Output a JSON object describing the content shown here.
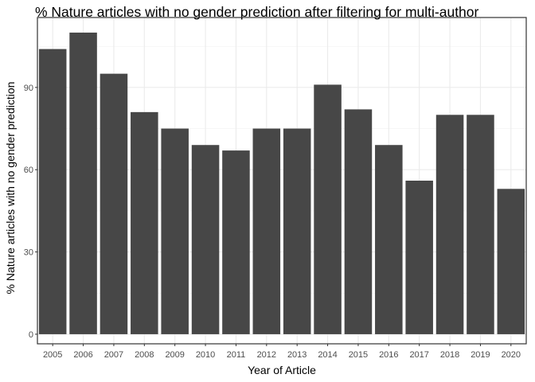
{
  "chart_data": {
    "type": "bar",
    "title": "% Nature articles with no gender prediction after filtering for multi-author",
    "xlabel": "Year of Article",
    "ylabel": "% Nature articles with no gender prediction",
    "categories": [
      "2005",
      "2006",
      "2007",
      "2008",
      "2009",
      "2010",
      "2011",
      "2012",
      "2013",
      "2014",
      "2015",
      "2016",
      "2017",
      "2018",
      "2019",
      "2020"
    ],
    "values": [
      104,
      110,
      95,
      81,
      75,
      69,
      67,
      75,
      75,
      91,
      82,
      69,
      56,
      80,
      80,
      53
    ],
    "yticks": [
      0,
      30,
      60,
      90
    ],
    "ylim": [
      -3.5,
      115.5
    ],
    "bar_color": "#474747",
    "grid": true
  }
}
